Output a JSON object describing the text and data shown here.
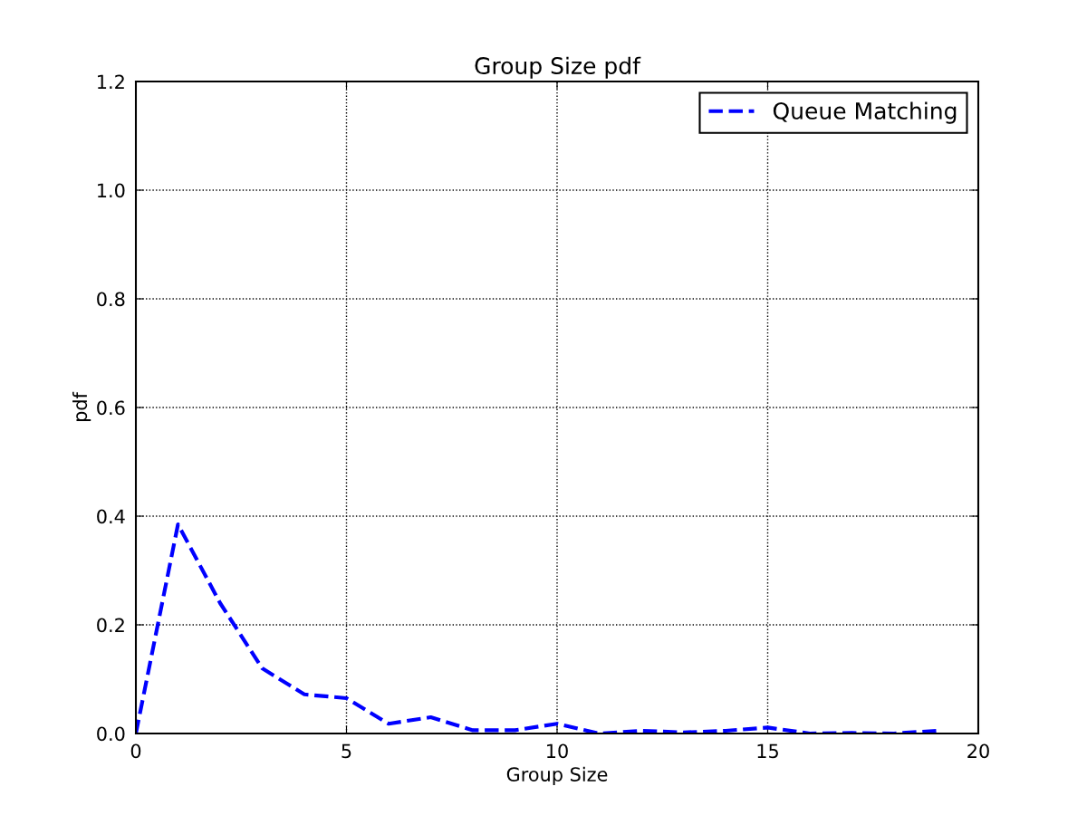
{
  "chart_data": {
    "type": "line",
    "title": "Group Size pdf",
    "xlabel": "Group Size",
    "ylabel": "pdf",
    "x": [
      0,
      1,
      2,
      3,
      4,
      5,
      6,
      7,
      8,
      9,
      10,
      11,
      12,
      13,
      14,
      15,
      16,
      17,
      18,
      19
    ],
    "series": [
      {
        "name": "Queue Matching",
        "color": "#0000ff",
        "values": [
          0,
          0.385,
          0.24,
          0.12,
          0.072,
          0.065,
          0.018,
          0.03,
          0.006,
          0.006,
          0.018,
          0.0,
          0.005,
          0.002,
          0.005,
          0.011,
          0.0,
          0.001,
          0.0,
          0.005
        ]
      }
    ],
    "xlim": [
      0,
      20
    ],
    "xticks": [
      0,
      5,
      10,
      15,
      20
    ],
    "ylim": [
      0,
      1.2
    ],
    "yticks": [
      {
        "value": 0,
        "label": "0.0"
      },
      0.2,
      0.4,
      0.6,
      0.8,
      {
        "value": 1,
        "label": "1.0"
      },
      1.2
    ],
    "grid": true,
    "legend": "top right",
    "line_style": "dashed",
    "marker": "none"
  }
}
